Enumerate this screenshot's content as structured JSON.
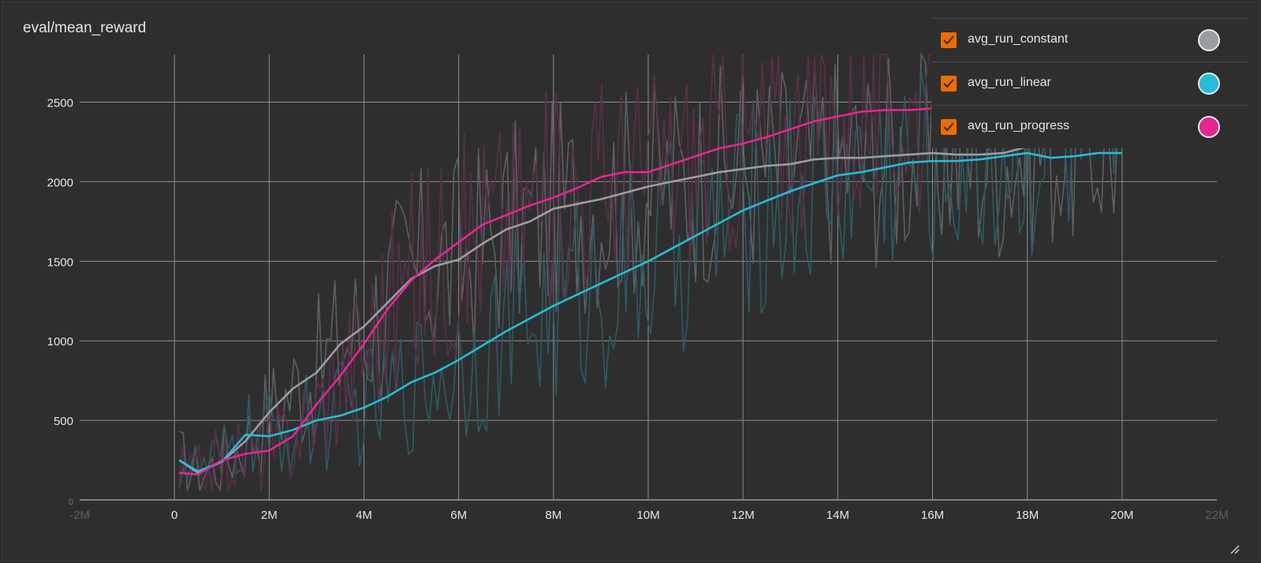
{
  "chart_data": {
    "type": "line",
    "title": "eval/mean_reward",
    "xlabel": "",
    "ylabel": "",
    "xlim": [
      -2000000,
      22000000
    ],
    "ylim": [
      0,
      2800
    ],
    "x_ticks": [
      {
        "value": -2000000,
        "label": "-2M"
      },
      {
        "value": 0,
        "label": "0"
      },
      {
        "value": 2000000,
        "label": "2M"
      },
      {
        "value": 4000000,
        "label": "4M"
      },
      {
        "value": 6000000,
        "label": "6M"
      },
      {
        "value": 8000000,
        "label": "8M"
      },
      {
        "value": 10000000,
        "label": "10M"
      },
      {
        "value": 12000000,
        "label": "12M"
      },
      {
        "value": 14000000,
        "label": "14M"
      },
      {
        "value": 16000000,
        "label": "16M"
      },
      {
        "value": 18000000,
        "label": "18M"
      },
      {
        "value": 20000000,
        "label": "20M"
      },
      {
        "value": 22000000,
        "label": "22M"
      }
    ],
    "y_ticks": [
      {
        "value": 0,
        "label": "0"
      },
      {
        "value": 500,
        "label": "500"
      },
      {
        "value": 1000,
        "label": "1000"
      },
      {
        "value": 1500,
        "label": "1500"
      },
      {
        "value": 2000,
        "label": "2000"
      },
      {
        "value": 2500,
        "label": "2500"
      }
    ],
    "grid": true,
    "legend_placement": "top-right",
    "series": [
      {
        "name": "avg_run_constant",
        "color": "#9a9ea3",
        "raw_color": "#5c5f62",
        "x": [
          100000,
          500000,
          1000000,
          1500000,
          2000000,
          2500000,
          3000000,
          3500000,
          4000000,
          4500000,
          5000000,
          5500000,
          6000000,
          6500000,
          7000000,
          7500000,
          8000000,
          8500000,
          9000000,
          9500000,
          10000000,
          10500000,
          11000000,
          11500000,
          12000000,
          12500000,
          13000000,
          13500000,
          14000000,
          14500000,
          15000000,
          15500000,
          16000000,
          16500000,
          17000000,
          17500000,
          18000000,
          18500000,
          19000000,
          19500000,
          20000000
        ],
        "values": [
          250,
          170,
          240,
          370,
          550,
          700,
          800,
          980,
          1090,
          1240,
          1390,
          1470,
          1510,
          1610,
          1700,
          1750,
          1830,
          1860,
          1890,
          1930,
          1970,
          2000,
          2030,
          2060,
          2080,
          2100,
          2110,
          2140,
          2150,
          2150,
          2160,
          2170,
          2180,
          2170,
          2170,
          2180,
          2220,
          2240,
          2250,
          2250,
          2250
        ]
      },
      {
        "name": "avg_run_linear",
        "color": "#26bcd7",
        "raw_color": "#2c5a62",
        "x": [
          100000,
          500000,
          1000000,
          1500000,
          2000000,
          2500000,
          3000000,
          3500000,
          4000000,
          4500000,
          5000000,
          5500000,
          6000000,
          6500000,
          7000000,
          7500000,
          8000000,
          8500000,
          9000000,
          9500000,
          10000000,
          10500000,
          11000000,
          11500000,
          12000000,
          12500000,
          13000000,
          13500000,
          14000000,
          14500000,
          15000000,
          15500000,
          16000000,
          16500000,
          17000000,
          17500000,
          18000000,
          18500000,
          19000000,
          19500000,
          20000000
        ],
        "values": [
          250,
          180,
          240,
          410,
          400,
          440,
          500,
          530,
          580,
          650,
          740,
          800,
          880,
          970,
          1060,
          1140,
          1220,
          1290,
          1360,
          1430,
          1500,
          1580,
          1660,
          1740,
          1820,
          1880,
          1940,
          1990,
          2040,
          2060,
          2090,
          2120,
          2130,
          2130,
          2140,
          2160,
          2180,
          2150,
          2160,
          2180,
          2180
        ]
      },
      {
        "name": "avg_run_progress",
        "color": "#e52592",
        "raw_color": "#5a2f48",
        "x": [
          100000,
          500000,
          1000000,
          1500000,
          2000000,
          2500000,
          3000000,
          3500000,
          4000000,
          4500000,
          5000000,
          5500000,
          6000000,
          6500000,
          7000000,
          7500000,
          8000000,
          8500000,
          9000000,
          9500000,
          10000000,
          10500000,
          11000000,
          11500000,
          12000000,
          12500000,
          13000000,
          13500000,
          14000000,
          14500000,
          15000000,
          15500000,
          16000000
        ],
        "values": [
          170,
          160,
          250,
          290,
          310,
          400,
          600,
          780,
          980,
          1200,
          1380,
          1510,
          1620,
          1730,
          1790,
          1850,
          1900,
          1960,
          2030,
          2060,
          2060,
          2110,
          2160,
          2210,
          2240,
          2280,
          2330,
          2380,
          2410,
          2440,
          2450,
          2450,
          2460
        ]
      }
    ]
  },
  "legend": {
    "items": [
      {
        "label": "avg_run_constant",
        "swatch": "#9a9ea3",
        "checkbox": "#ef6c00"
      },
      {
        "label": "avg_run_linear",
        "swatch": "#26bcd7",
        "checkbox": "#ef6c00"
      },
      {
        "label": "avg_run_progress",
        "swatch": "#e52592",
        "checkbox": "#ef6c00"
      }
    ]
  },
  "colors": {
    "background": "#2e2e2e",
    "grid": "#8c8c8c",
    "text": "#e6e6e6",
    "checkbox": "#ef6c00"
  }
}
